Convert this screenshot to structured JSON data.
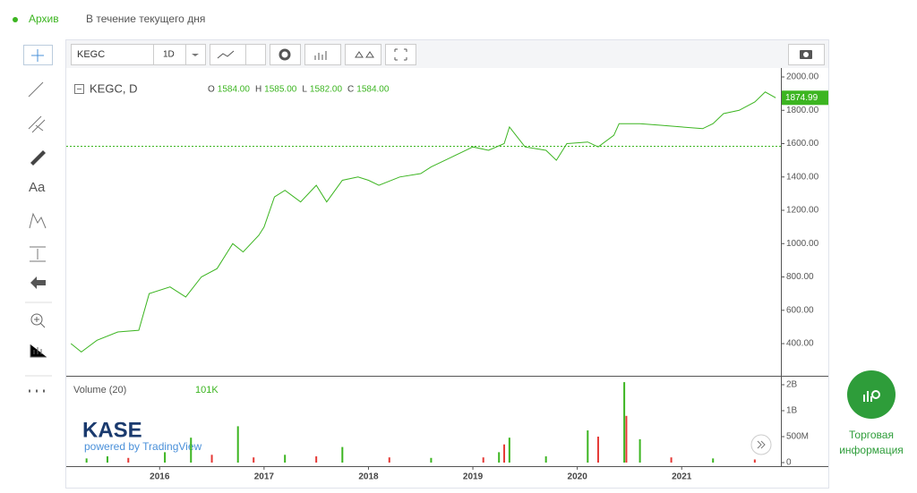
{
  "header": {
    "archive": "Архив",
    "period": "В течение текущего дня"
  },
  "toolbar": {
    "symbol": "KEGC",
    "interval": "1D"
  },
  "left_tools": {
    "text_tool": "Aa"
  },
  "brand": {
    "logo": "KASE",
    "powered": "powered by TradingView"
  },
  "side_button": {
    "label_lines": [
      "Торговая",
      "информация"
    ]
  },
  "chart_data": [
    {
      "type": "line",
      "title": "KEGC, D",
      "color": "#3cb521",
      "ohlc_labels": [
        "O",
        "H",
        "L",
        "C"
      ],
      "ohlc": [
        {
          "value": 1584,
          "label": "1584.00"
        },
        {
          "value": 1585,
          "label": "1585.00"
        },
        {
          "value": 1582,
          "label": "1582.00"
        },
        {
          "value": 1584,
          "label": "1584.00"
        }
      ],
      "last_price": 1874.99,
      "x": [
        2015.15,
        2015.25,
        2015.4,
        2015.6,
        2015.8,
        2015.9,
        2016.1,
        2016.25,
        2016.4,
        2016.55,
        2016.7,
        2016.8,
        2016.95,
        2017.0,
        2017.1,
        2017.2,
        2017.35,
        2017.5,
        2017.6,
        2017.75,
        2017.9,
        2018.0,
        2018.1,
        2018.3,
        2018.5,
        2018.6,
        2018.8,
        2018.9,
        2019.0,
        2019.15,
        2019.3,
        2019.35,
        2019.5,
        2019.7,
        2019.8,
        2019.9,
        2020.1,
        2020.2,
        2020.35,
        2020.4,
        2020.6,
        2020.8,
        2021.0,
        2021.2,
        2021.3,
        2021.4,
        2021.55,
        2021.7,
        2021.8,
        2021.9
      ],
      "values": [
        400,
        350,
        420,
        470,
        480,
        700,
        740,
        680,
        800,
        850,
        1000,
        950,
        1050,
        1100,
        1280,
        1320,
        1250,
        1350,
        1250,
        1380,
        1400,
        1380,
        1350,
        1400,
        1420,
        1460,
        1520,
        1550,
        1580,
        1560,
        1600,
        1700,
        1580,
        1560,
        1500,
        1600,
        1610,
        1580,
        1650,
        1720,
        1720,
        1710,
        1700,
        1690,
        1720,
        1780,
        1800,
        1850,
        1910,
        1875
      ],
      "xlim": [
        2015.14,
        2021.95
      ],
      "ylim": [
        207,
        2043
      ],
      "xticks": [
        2016,
        2017,
        2018,
        2019,
        2020,
        2021
      ],
      "yticks": [
        {
          "value": 400,
          "label": "400.00"
        },
        {
          "value": 600,
          "label": "600.00"
        },
        {
          "value": 800,
          "label": "800.00"
        },
        {
          "value": 1000,
          "label": "1000.00"
        },
        {
          "value": 1200,
          "label": "1200.00"
        },
        {
          "value": 1400,
          "label": "1400.00"
        },
        {
          "value": 1600,
          "label": "1600.00"
        },
        {
          "value": 1800,
          "label": "1800.00"
        },
        {
          "value": 2000,
          "label": "2000.00"
        }
      ]
    },
    {
      "type": "bar",
      "title": "Volume (20)",
      "last_value": {
        "value": 101000,
        "label": "101K"
      },
      "x": [
        2015.3,
        2015.5,
        2015.7,
        2016.05,
        2016.3,
        2016.5,
        2016.75,
        2016.9,
        2017.2,
        2017.5,
        2017.75,
        2018.2,
        2018.6,
        2019.1,
        2019.25,
        2019.3,
        2019.35,
        2019.7,
        2020.1,
        2020.2,
        2020.45,
        2020.47,
        2020.6,
        2020.9,
        2021.3,
        2021.7
      ],
      "values": [
        80000000,
        120000000,
        90000000,
        200000000,
        480000000,
        150000000,
        700000000,
        100000000,
        150000000,
        120000000,
        300000000,
        100000000,
        90000000,
        100000000,
        200000000,
        350000000,
        480000000,
        120000000,
        620000000,
        500000000,
        2100000000,
        900000000,
        450000000,
        100000000,
        80000000,
        60000000
      ],
      "colors": [
        "#3cb521",
        "#3cb521",
        "#e53935",
        "#3cb521",
        "#3cb521",
        "#e53935",
        "#3cb521",
        "#e53935",
        "#3cb521",
        "#e53935",
        "#3cb521",
        "#e53935",
        "#3cb521",
        "#e53935",
        "#3cb521",
        "#e53935",
        "#3cb521",
        "#3cb521",
        "#3cb521",
        "#e53935",
        "#3cb521",
        "#e53935",
        "#3cb521",
        "#e53935",
        "#3cb521",
        "#e53935"
      ],
      "yticks": [
        0,
        {
          "value": 500000000,
          "label": "500M"
        },
        {
          "value": 1000000000,
          "label": "1B"
        },
        {
          "value": 2000000000,
          "label": "2B"
        }
      ]
    }
  ]
}
